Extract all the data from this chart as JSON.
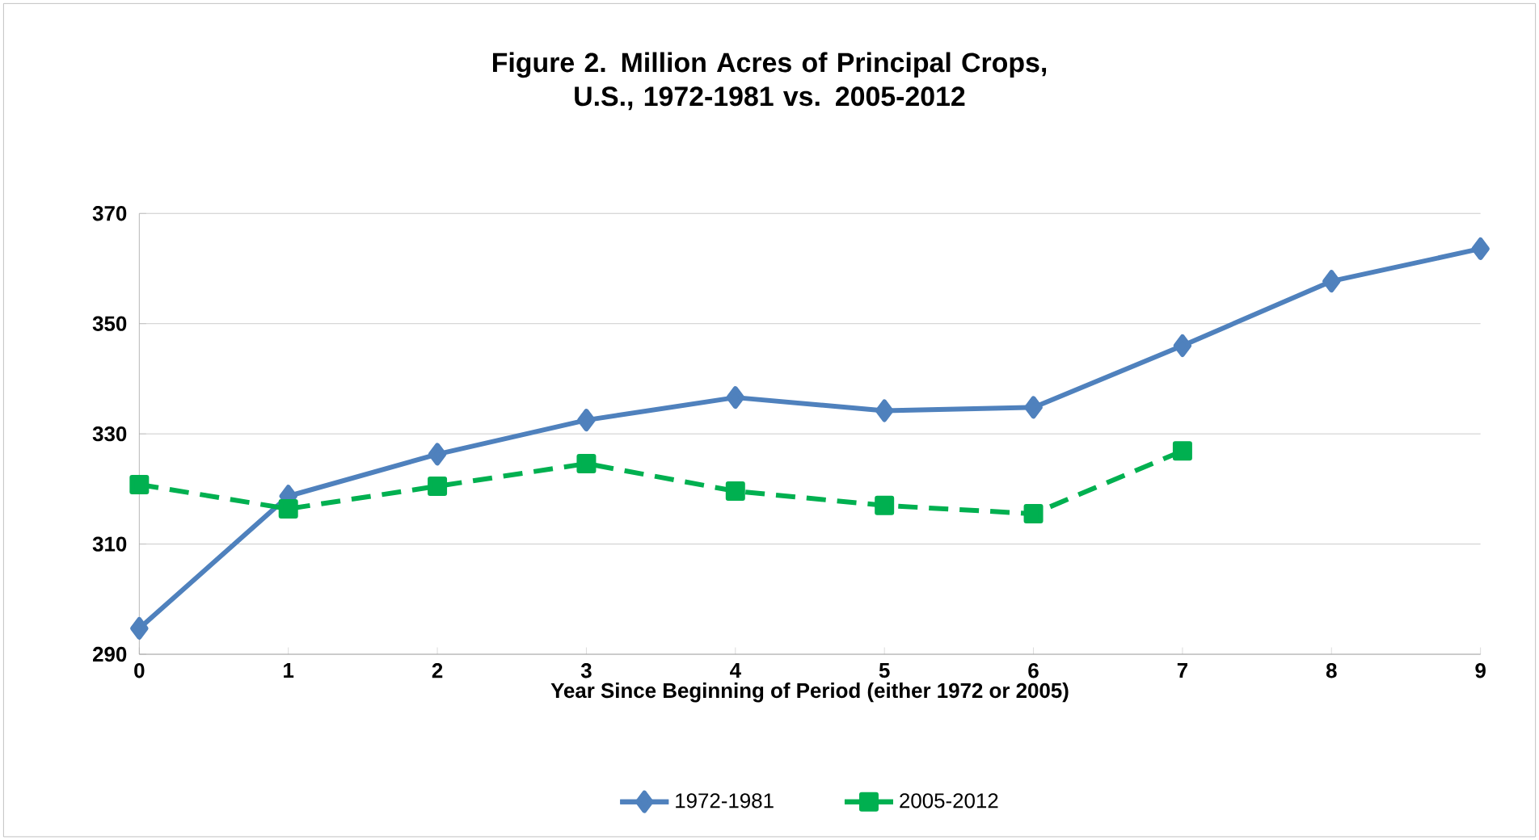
{
  "chart_data": {
    "type": "line",
    "title": "Figure 2.  Million Acres of Principal Crops,\nU.S., 1972-1981 vs. 2005-2012",
    "xlabel": "Year Since Beginning of Period (either 1972 or 2005)",
    "x": [
      0,
      1,
      2,
      3,
      4,
      5,
      6,
      7,
      8,
      9
    ],
    "xlim": [
      0,
      9
    ],
    "xticks": [
      0,
      1,
      2,
      3,
      4,
      5,
      6,
      7,
      8,
      9
    ],
    "ylim": [
      290,
      370
    ],
    "yticks": [
      290,
      310,
      330,
      350,
      370
    ],
    "grid": "y",
    "legend": "bottom",
    "series": [
      {
        "name": "1972-1981",
        "color": "#4f81bd",
        "marker": "diamond",
        "line_style": "solid",
        "values": [
          294.7,
          318.7,
          326.3,
          332.5,
          336.6,
          334.2,
          334.8,
          346,
          357.7,
          363.6
        ]
      },
      {
        "name": "2005-2012",
        "color": "#00b050",
        "marker": "square",
        "line_style": "dashed",
        "values": [
          320.8,
          316.4,
          320.5,
          324.6,
          319.6,
          317,
          315.5,
          326.9,
          null,
          null
        ]
      }
    ]
  }
}
